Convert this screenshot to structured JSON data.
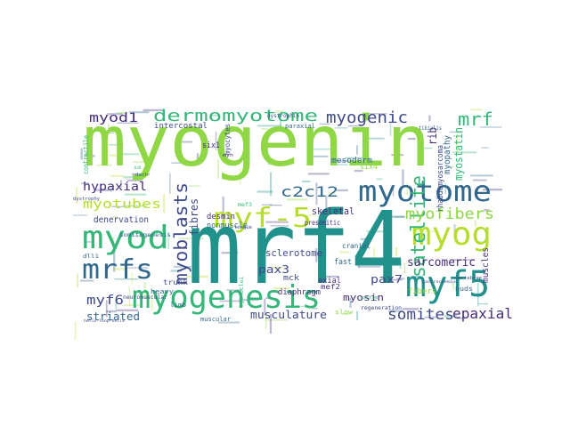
{
  "palette": {
    "lime": "#8fd744",
    "green": "#35b779",
    "teal": "#21918c",
    "blue": "#31688e",
    "indigo": "#3e4a89",
    "purple": "#472d7b",
    "yellowgreen": "#b5de2b"
  },
  "words": [
    {
      "text": "myogenin",
      "color": "lime"
    },
    {
      "text": "mrf4",
      "color": "teal"
    },
    {
      "text": "myogenesis",
      "color": "green"
    },
    {
      "text": "myotome",
      "color": "blue"
    },
    {
      "text": "dermomyotome",
      "color": "green"
    },
    {
      "text": "myf5",
      "color": "teal"
    },
    {
      "text": "myf-5",
      "color": "yellowgreen"
    },
    {
      "text": "myog",
      "color": "yellowgreen"
    },
    {
      "text": "myod",
      "color": "green"
    },
    {
      "text": "mrfs",
      "color": "blue"
    },
    {
      "text": "myogenic",
      "color": "indigo"
    },
    {
      "text": "mrf",
      "color": "green"
    },
    {
      "text": "myod1",
      "color": "purple"
    },
    {
      "text": "myoblasts",
      "color": "indigo"
    },
    {
      "text": "satellite",
      "color": "green"
    },
    {
      "text": "myofibers",
      "color": "lime"
    },
    {
      "text": "c2c12",
      "color": "blue"
    },
    {
      "text": "somites",
      "color": "indigo"
    },
    {
      "text": "epaxial",
      "color": "purple"
    },
    {
      "text": "myotubes",
      "color": "yellowgreen"
    },
    {
      "text": "hypaxial",
      "color": "purple"
    },
    {
      "text": "myf6",
      "color": "indigo"
    },
    {
      "text": "striated",
      "color": "blue"
    },
    {
      "text": "musculature",
      "color": "indigo"
    },
    {
      "text": "sarcomeric",
      "color": "purple"
    },
    {
      "text": "rib",
      "color": "purple"
    },
    {
      "text": "fibres",
      "color": "indigo"
    },
    {
      "text": "pax3",
      "color": "indigo"
    },
    {
      "text": "pax7",
      "color": "indigo"
    },
    {
      "text": "myosin",
      "color": "purple"
    },
    {
      "text": "myostatin",
      "color": "green"
    },
    {
      "text": "myopathy",
      "color": "blue"
    },
    {
      "text": "rhabdomyosarcoma",
      "color": "indigo"
    },
    {
      "text": "denervation",
      "color": "indigo"
    },
    {
      "text": "sclerotome",
      "color": "indigo"
    },
    {
      "text": "skeletal",
      "color": "purple"
    },
    {
      "text": "desmin",
      "color": "purple"
    },
    {
      "text": "nonmuscle",
      "color": "blue"
    },
    {
      "text": "intercostal",
      "color": "indigo"
    },
    {
      "text": "mesoderm",
      "color": "blue"
    },
    {
      "text": "six1",
      "color": "purple"
    },
    {
      "text": "six4",
      "color": "lime"
    },
    {
      "text": "myocytes",
      "color": "indigo"
    },
    {
      "text": "contractile",
      "color": "green"
    },
    {
      "text": "presomitic",
      "color": "purple"
    },
    {
      "text": "cranial",
      "color": "blue"
    },
    {
      "text": "fast",
      "color": "blue"
    },
    {
      "text": "axial",
      "color": "purple"
    },
    {
      "text": "mef2",
      "color": "purple"
    },
    {
      "text": "fibers",
      "color": "lime"
    },
    {
      "text": "muscles",
      "color": "purple"
    },
    {
      "text": "mck",
      "color": "indigo"
    },
    {
      "text": "diaphragm",
      "color": "purple"
    },
    {
      "text": "trunk",
      "color": "indigo"
    },
    {
      "text": "limb",
      "color": "blue"
    },
    {
      "text": "muscular",
      "color": "blue"
    },
    {
      "text": "heavy",
      "color": "blue"
    },
    {
      "text": "neuromuscular",
      "color": "indigo"
    },
    {
      "text": "somitogenesis",
      "color": "blue"
    },
    {
      "text": "dll1",
      "color": "blue"
    },
    {
      "text": "slow",
      "color": "lime"
    },
    {
      "text": "buds",
      "color": "blue"
    },
    {
      "text": "regeneration",
      "color": "indigo"
    },
    {
      "text": "paraxial",
      "color": "blue"
    },
    {
      "text": "tibialis",
      "color": "blue"
    },
    {
      "text": "dystrophin",
      "color": "indigo"
    },
    {
      "text": "mef3",
      "color": "green"
    },
    {
      "text": "myonuclei",
      "color": "green"
    },
    {
      "text": "dystrophy",
      "color": "indigo"
    },
    {
      "text": "tongue",
      "color": "indigo"
    },
    {
      "text": "costum",
      "color": "green"
    },
    {
      "text": "vertebrae",
      "color": "indigo"
    },
    {
      "text": "helix-loop-helix",
      "color": "indigo"
    },
    {
      "text": "gastrocnemius",
      "color": "indigo"
    },
    {
      "text": "myh",
      "color": "purple"
    },
    {
      "text": "dach",
      "color": "blue"
    },
    {
      "text": "id",
      "color": "green"
    }
  ]
}
